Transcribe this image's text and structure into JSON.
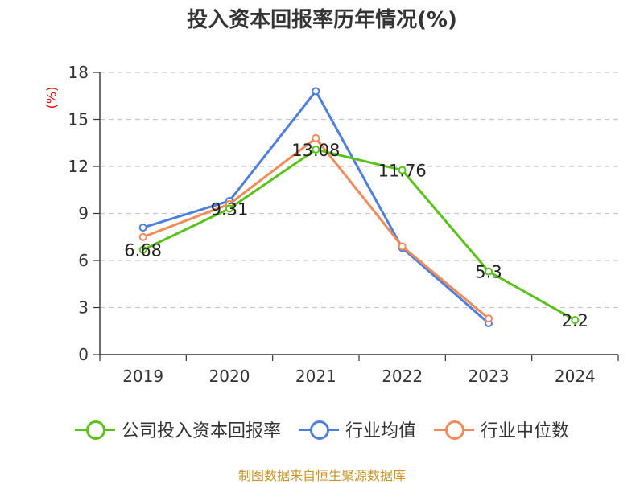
{
  "chart_data": {
    "type": "line",
    "title": "投入资本回报率历年情况(%)",
    "ylabel": "(%)",
    "xlabel": "",
    "categories": [
      "2019",
      "2020",
      "2021",
      "2022",
      "2023",
      "2024"
    ],
    "ylim": [
      0,
      18
    ],
    "yticks": [
      0,
      3,
      6,
      9,
      12,
      15,
      18
    ],
    "grid": true,
    "legend_position": "bottom",
    "series": [
      {
        "name": "公司投入资本回报率",
        "color": "#5ac21b",
        "values": [
          6.68,
          9.31,
          13.08,
          11.76,
          5.3,
          2.2
        ],
        "labels": [
          "6.68",
          "9.31",
          "13.08",
          "11.76",
          "5.3",
          "2.2"
        ]
      },
      {
        "name": "行业均值",
        "color": "#4e7fdc",
        "values": [
          8.1,
          9.8,
          16.8,
          6.8,
          2.0,
          null
        ]
      },
      {
        "name": "行业中位数",
        "color": "#f28b5a",
        "values": [
          7.5,
          9.6,
          13.8,
          6.9,
          2.3,
          null
        ]
      }
    ]
  },
  "source_text": "制图数据来自恒生聚源数据库"
}
